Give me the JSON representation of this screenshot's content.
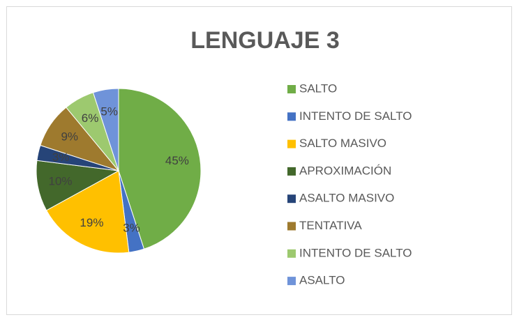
{
  "chart_data": {
    "type": "pie",
    "title": "LENGUAJE 3",
    "categories": [
      "SALTO",
      "INTENTO DE SALTO",
      "SALTO MASIVO",
      "APROXIMACIÓN",
      "ASALTO MASIVO",
      "TENTATIVA",
      "INTENTO DE SALTO",
      "ASALTO"
    ],
    "values": [
      45,
      3,
      19,
      10,
      3,
      9,
      6,
      5
    ],
    "value_labels": [
      "45%",
      "3%",
      "19%",
      "10%",
      "3%",
      "9%",
      "6%",
      "5%"
    ],
    "colors": [
      "#70ad47",
      "#4472c4",
      "#ffc000",
      "#43682b",
      "#264478",
      "#9e7a2e",
      "#9dc96f",
      "#6f93d9"
    ],
    "legend": "right"
  }
}
